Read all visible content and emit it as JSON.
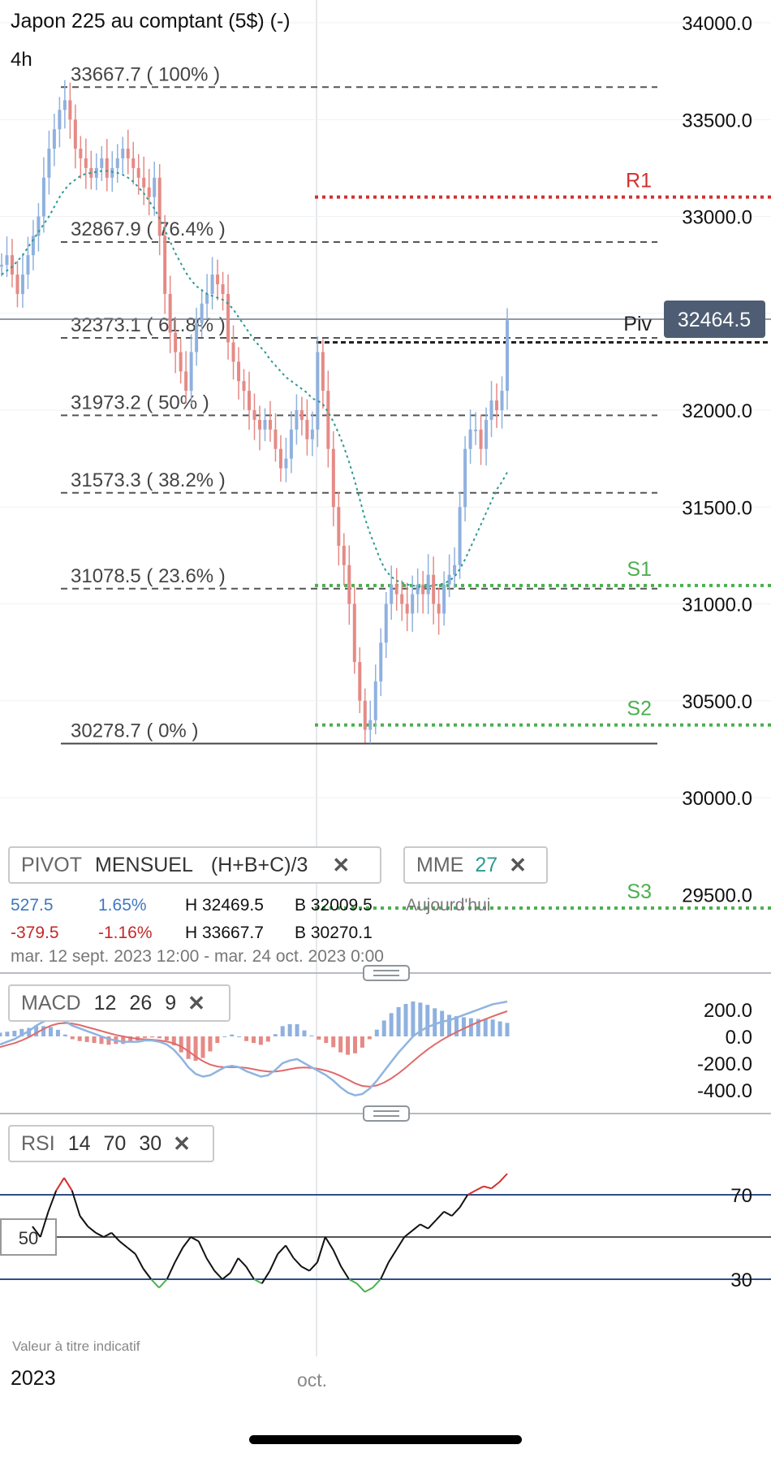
{
  "header": {
    "title": "Japon 225 au comptant (5$) (-)",
    "timeframe": "4h"
  },
  "price_axis": {
    "labels": [
      "34000.0",
      "33500.0",
      "33000.0",
      "32000.0",
      "31500.0",
      "31000.0",
      "30500.0",
      "30000.0",
      "29500.0"
    ],
    "current_price": "32464.5"
  },
  "fibonacci": {
    "levels": [
      {
        "label": "33667.7 ( 100% )",
        "price": 33667.7
      },
      {
        "label": "32867.9 ( 76.4% )",
        "price": 32867.9
      },
      {
        "label": "32373.1 ( 61.8% )",
        "price": 32373.1
      },
      {
        "label": "31973.2 ( 50% )",
        "price": 31973.2
      },
      {
        "label": "31573.3 ( 38.2% )",
        "price": 31573.3
      },
      {
        "label": "31078.5 ( 23.6% )",
        "price": 31078.5
      },
      {
        "label": "30278.7 ( 0% )",
        "price": 30278.7
      }
    ]
  },
  "pivots": {
    "levels": [
      {
        "name": "R1",
        "price": 33100,
        "color": "#d32f2f"
      },
      {
        "name": "Piv",
        "price": 32350,
        "color": "#222222"
      },
      {
        "name": "S1",
        "price": 31095,
        "color": "#4caf50"
      },
      {
        "name": "S2",
        "price": 30375,
        "color": "#4caf50"
      },
      {
        "name": "S3",
        "price": 29430,
        "color": "#4caf50"
      }
    ]
  },
  "indicator_chips": {
    "pivot": {
      "name": "PIVOT",
      "type": "MENSUEL",
      "formula": "(H+B+C)/3",
      "close": "✕"
    },
    "ema": {
      "name": "MME",
      "period": "27",
      "close": "✕"
    },
    "macd": {
      "name": "MACD",
      "fast": "12",
      "slow": "26",
      "signal": "9",
      "close": "✕"
    },
    "rsi": {
      "name": "RSI",
      "period": "14",
      "overbought": "70",
      "oversold": "30",
      "close": "✕"
    }
  },
  "stats": {
    "today": {
      "change": "527.5",
      "pct": "1.65%",
      "high": "H 32469.5",
      "low": "B 32009.5",
      "label": "Aujourd'hui"
    },
    "period": {
      "change": "-379.5",
      "pct": "-1.16%",
      "high": "H 33667.7",
      "low": "B 30270.1"
    },
    "range": "mar. 12 sept. 2023 12:00 - mar. 24 oct. 2023 0:00"
  },
  "macd_axis": {
    "labels": [
      "200.0",
      "0.0",
      "-200.0",
      "-400.0"
    ]
  },
  "rsi_axis": {
    "labels": [
      "70",
      "30"
    ],
    "midline_label": "50"
  },
  "footer": {
    "disclaimer": "Valeur à titre indicatif",
    "year": "2023",
    "month": "oct."
  },
  "colors": {
    "up": "#8fb1df",
    "down": "#e58a86",
    "ema": "#2e9a91",
    "macd_line": "#8fb4e0",
    "signal_line": "#e06a6a",
    "price_badge": "#4e5d73"
  },
  "chart_data": {
    "type": "candlestick",
    "closes": [
      32750,
      32800,
      32700,
      32600,
      32700,
      32800,
      32900,
      33000,
      33200,
      33350,
      33450,
      33550,
      33600,
      33500,
      33350,
      33300,
      33250,
      33200,
      33250,
      33300,
      33200,
      33250,
      33300,
      33350,
      33300,
      33250,
      33200,
      33150,
      33100,
      33200,
      32900,
      32600,
      32400,
      32300,
      32200,
      32100,
      32300,
      32450,
      32550,
      32600,
      32700,
      32650,
      32600,
      32350,
      32250,
      32150,
      32100,
      32000,
      31950,
      31900,
      31950,
      31900,
      31800,
      31700,
      31750,
      31900,
      32000,
      31950,
      31850,
      31900,
      32300,
      32100,
      31800,
      31500,
      31300,
      31200,
      31000,
      30700,
      30500,
      30350,
      30400,
      30600,
      30800,
      31000,
      31100,
      31050,
      31000,
      30950,
      31050,
      31100,
      31050,
      31150,
      31000,
      30950,
      31100,
      31150,
      31200,
      31500,
      31800,
      31900,
      31900,
      31800,
      31950,
      32050,
      32000,
      32100,
      32464.5
    ],
    "ema_27": [
      32700,
      32720,
      32740,
      32770,
      32800,
      32840,
      32880,
      32920,
      32960,
      33000,
      33050,
      33100,
      33140,
      33170,
      33190,
      33210,
      33220,
      33225,
      33230,
      33235,
      33235,
      33230,
      33225,
      33215,
      33200,
      33180,
      33150,
      33120,
      33080,
      33040,
      32990,
      32930,
      32870,
      32810,
      32760,
      32710,
      32670,
      32640,
      32620,
      32600,
      32590,
      32580,
      32570,
      32550,
      32520,
      32480,
      32440,
      32400,
      32360,
      32330,
      32300,
      32260,
      32230,
      32200,
      32170,
      32150,
      32130,
      32110,
      32090,
      32060,
      32050,
      32030,
      31990,
      31940,
      31880,
      31810,
      31730,
      31640,
      31540,
      31440,
      31360,
      31290,
      31220,
      31170,
      31140,
      31120,
      31110,
      31100,
      31095,
      31090,
      31085,
      31090,
      31095,
      31100,
      31105,
      31120,
      31140,
      31180,
      31230,
      31290,
      31350,
      31410,
      31470,
      31530,
      31590,
      31630,
      31680
    ],
    "macd": [
      -60,
      -40,
      -20,
      10,
      40,
      80,
      110,
      130,
      130,
      110,
      80,
      60,
      40,
      20,
      0,
      -20,
      -30,
      -40,
      -40,
      -40,
      -30,
      -30,
      -40,
      -60,
      -100,
      -160,
      -230,
      -280,
      -300,
      -290,
      -260,
      -230,
      -220,
      -230,
      -260,
      -280,
      -300,
      -290,
      -250,
      -200,
      -180,
      -170,
      -200,
      -230,
      -260,
      -290,
      -330,
      -380,
      -420,
      -440,
      -430,
      -390,
      -330,
      -260,
      -190,
      -120,
      -60,
      0,
      40,
      70,
      90,
      110,
      120,
      140,
      160,
      180,
      200,
      220,
      240,
      250,
      260
    ],
    "macd_signal": [
      -80,
      -65,
      -50,
      -30,
      -5,
      25,
      55,
      80,
      95,
      100,
      95,
      85,
      70,
      55,
      40,
      25,
      10,
      0,
      -10,
      -18,
      -22,
      -25,
      -30,
      -38,
      -52,
      -75,
      -110,
      -150,
      -185,
      -210,
      -225,
      -230,
      -230,
      -230,
      -235,
      -245,
      -255,
      -262,
      -262,
      -255,
      -245,
      -235,
      -232,
      -235,
      -243,
      -255,
      -272,
      -295,
      -322,
      -350,
      -370,
      -375,
      -366,
      -345,
      -314,
      -276,
      -233,
      -186,
      -140,
      -98,
      -60,
      -26,
      5,
      32,
      58,
      83,
      107,
      129,
      150,
      170,
      188
    ],
    "rsi": [
      55,
      50,
      62,
      72,
      78,
      72,
      60,
      55,
      52,
      50,
      52,
      48,
      45,
      42,
      35,
      30,
      26,
      30,
      38,
      45,
      50,
      48,
      40,
      34,
      30,
      33,
      40,
      36,
      30,
      28,
      34,
      42,
      46,
      40,
      36,
      34,
      38,
      50,
      44,
      36,
      30,
      28,
      24,
      26,
      30,
      38,
      44,
      50,
      53,
      56,
      54,
      58,
      62,
      60,
      64,
      70,
      72,
      74,
      73,
      76,
      80
    ],
    "ylim": [
      29800,
      34150
    ]
  }
}
